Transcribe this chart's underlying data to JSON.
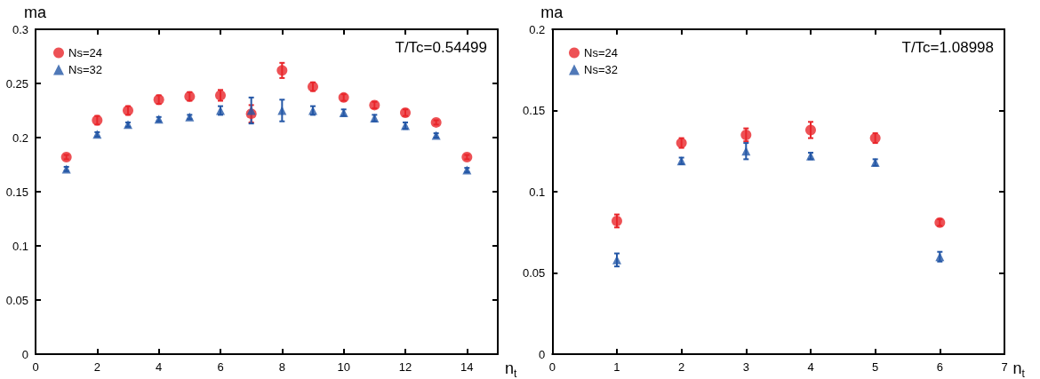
{
  "chart_data": [
    {
      "type": "scatter",
      "xlabel": "n$_{t}$",
      "ylabel": "ma",
      "annotations": [
        "T/Tc=0.54499"
      ],
      "x": [
        1,
        2,
        3,
        4,
        5,
        6,
        7,
        8,
        9,
        10,
        11,
        12,
        13,
        14
      ],
      "xlim": [
        0,
        15
      ],
      "xticks": [
        0,
        2,
        4,
        6,
        8,
        10,
        12,
        14
      ],
      "ylim": [
        0,
        0.3
      ],
      "yticks": [
        0,
        0.05,
        0.1,
        0.15,
        0.2,
        0.25,
        0.3
      ],
      "legend": "top left",
      "grid": false,
      "series": [
        {
          "name": "Ns=24",
          "color": "#e8262b",
          "marker": "circle",
          "values": [
            0.182,
            0.216,
            0.225,
            0.235,
            0.238,
            0.239,
            0.222,
            0.262,
            0.247,
            0.237,
            0.23,
            0.223,
            0.214,
            0.182
          ],
          "errors": [
            0.002,
            0.004,
            0.004,
            0.004,
            0.004,
            0.005,
            0.008,
            0.007,
            0.004,
            0.003,
            0.003,
            0.003,
            0.002,
            0.002
          ]
        },
        {
          "name": "Ns=32",
          "color": "#2457a6",
          "marker": "triangle",
          "values": [
            0.171,
            0.203,
            0.212,
            0.217,
            0.219,
            0.225,
            0.225,
            0.225,
            0.225,
            0.223,
            0.218,
            0.211,
            0.202,
            0.17
          ],
          "errors": [
            0.002,
            0.002,
            0.002,
            0.002,
            0.002,
            0.004,
            0.012,
            0.01,
            0.004,
            0.003,
            0.003,
            0.003,
            0.002,
            0.002
          ]
        }
      ]
    },
    {
      "type": "scatter",
      "xlabel": "n$_{t}$",
      "ylabel": "ma",
      "annotations": [
        "T/Tc=1.08998"
      ],
      "x": [
        1,
        2,
        3,
        4,
        5,
        6
      ],
      "xlim": [
        0,
        7
      ],
      "xticks": [
        0,
        1,
        2,
        3,
        4,
        5,
        6,
        7
      ],
      "ylim": [
        0,
        0.2
      ],
      "yticks": [
        0,
        0.05,
        0.1,
        0.15,
        0.2
      ],
      "legend": "top left",
      "grid": false,
      "series": [
        {
          "name": "Ns=24",
          "color": "#e8262b",
          "marker": "circle",
          "values": [
            0.082,
            0.13,
            0.135,
            0.138,
            0.133,
            0.081
          ],
          "errors": [
            0.004,
            0.003,
            0.004,
            0.005,
            0.003,
            0.002
          ]
        },
        {
          "name": "Ns=32",
          "color": "#2457a6",
          "marker": "triangle",
          "values": [
            0.058,
            0.119,
            0.125,
            0.122,
            0.118,
            0.06
          ],
          "errors": [
            0.004,
            0.002,
            0.005,
            0.002,
            0.002,
            0.003
          ]
        }
      ]
    }
  ]
}
